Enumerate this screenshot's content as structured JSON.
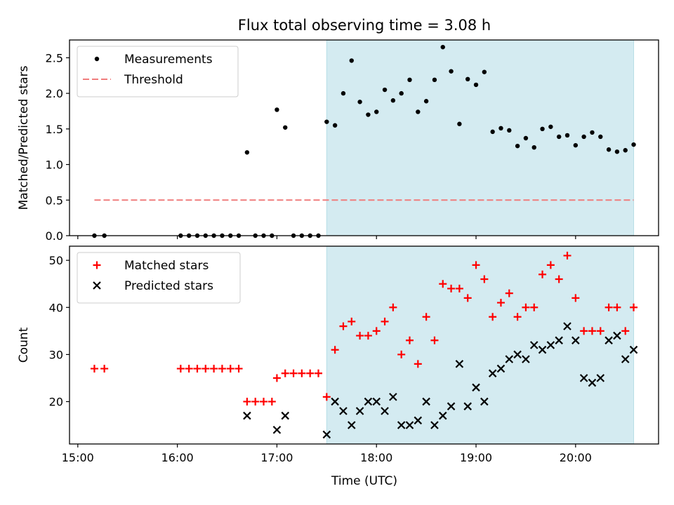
{
  "chart_data": [
    {
      "type": "scatter",
      "title": "Flux total observing time = 3.08 h",
      "xlabel": "",
      "ylabel": "Matched/Predicted stars",
      "x_tick_labels": [
        "15:00",
        "16:00",
        "17:00",
        "18:00",
        "19:00",
        "20:00"
      ],
      "y_ticks": [
        0.0,
        0.5,
        1.0,
        1.5,
        2.0,
        2.5
      ],
      "y_tick_labels": [
        "0.0",
        "0.5",
        "1.0",
        "1.5",
        "2.0",
        "2.5"
      ],
      "ylim": [
        0.0,
        2.75
      ],
      "xlim": [
        "14:55",
        "20:50"
      ],
      "grid": false,
      "legend": "upper-left",
      "highlight_span": {
        "start": "17:30",
        "end": "20:35",
        "color": "#d4ebf1"
      },
      "series": [
        {
          "name": "Measurements",
          "color": "#000000",
          "marker": "dot",
          "points": [
            [
              "15:10",
              0
            ],
            [
              "15:16",
              0
            ],
            [
              "16:02",
              0
            ],
            [
              "16:07",
              0
            ],
            [
              "16:12",
              0
            ],
            [
              "16:17",
              0
            ],
            [
              "16:22",
              0
            ],
            [
              "16:27",
              0
            ],
            [
              "16:32",
              0
            ],
            [
              "16:37",
              0
            ],
            [
              "16:42",
              1.17
            ],
            [
              "16:47",
              0
            ],
            [
              "16:52",
              0
            ],
            [
              "16:57",
              0
            ],
            [
              "17:00",
              1.77
            ],
            [
              "17:05",
              1.52
            ],
            [
              "17:10",
              0
            ],
            [
              "17:15",
              0
            ],
            [
              "17:20",
              0
            ],
            [
              "17:25",
              0
            ],
            [
              "17:30",
              1.6
            ],
            [
              "17:35",
              1.55
            ],
            [
              "17:40",
              2.0
            ],
            [
              "17:45",
              2.46
            ],
            [
              "17:50",
              1.88
            ],
            [
              "17:55",
              1.7
            ],
            [
              "18:00",
              1.74
            ],
            [
              "18:05",
              2.05
            ],
            [
              "18:10",
              1.9
            ],
            [
              "18:15",
              2.0
            ],
            [
              "18:20",
              2.19
            ],
            [
              "18:25",
              1.74
            ],
            [
              "18:30",
              1.89
            ],
            [
              "18:35",
              2.19
            ],
            [
              "18:40",
              2.65
            ],
            [
              "18:45",
              2.31
            ],
            [
              "18:50",
              1.57
            ],
            [
              "18:55",
              2.2
            ],
            [
              "19:00",
              2.12
            ],
            [
              "19:05",
              2.3
            ],
            [
              "19:10",
              1.46
            ],
            [
              "19:15",
              1.51
            ],
            [
              "19:20",
              1.48
            ],
            [
              "19:25",
              1.26
            ],
            [
              "19:30",
              1.37
            ],
            [
              "19:35",
              1.24
            ],
            [
              "19:40",
              1.5
            ],
            [
              "19:45",
              1.53
            ],
            [
              "19:50",
              1.39
            ],
            [
              "19:55",
              1.41
            ],
            [
              "20:00",
              1.27
            ],
            [
              "20:05",
              1.39
            ],
            [
              "20:10",
              1.45
            ],
            [
              "20:15",
              1.39
            ],
            [
              "20:20",
              1.21
            ],
            [
              "20:25",
              1.18
            ],
            [
              "20:30",
              1.2
            ],
            [
              "20:35",
              1.28
            ]
          ]
        },
        {
          "name": "Threshold",
          "color": "#f07d7d",
          "style": "dashed",
          "points": [
            [
              "15:10",
              0.5
            ],
            [
              "20:35",
              0.5
            ]
          ]
        }
      ]
    },
    {
      "type": "scatter",
      "xlabel": "Time (UTC)",
      "ylabel": "Count",
      "x_tick_labels": [
        "15:00",
        "16:00",
        "17:00",
        "18:00",
        "19:00",
        "20:00"
      ],
      "y_ticks": [
        20,
        30,
        40,
        50
      ],
      "y_tick_labels": [
        "20",
        "30",
        "40",
        "50"
      ],
      "ylim": [
        11,
        53
      ],
      "xlim": [
        "14:55",
        "20:50"
      ],
      "grid": false,
      "legend": "upper-left",
      "highlight_span": {
        "start": "17:30",
        "end": "20:35",
        "color": "#d4ebf1"
      },
      "series": [
        {
          "name": "Matched stars",
          "color": "#ff0000",
          "marker": "plus",
          "points": [
            [
              "15:10",
              27
            ],
            [
              "15:16",
              27
            ],
            [
              "16:02",
              27
            ],
            [
              "16:07",
              27
            ],
            [
              "16:12",
              27
            ],
            [
              "16:17",
              27
            ],
            [
              "16:22",
              27
            ],
            [
              "16:27",
              27
            ],
            [
              "16:32",
              27
            ],
            [
              "16:37",
              27
            ],
            [
              "16:42",
              20
            ],
            [
              "16:47",
              20
            ],
            [
              "16:52",
              20
            ],
            [
              "16:57",
              20
            ],
            [
              "17:00",
              25
            ],
            [
              "17:05",
              26
            ],
            [
              "17:10",
              26
            ],
            [
              "17:15",
              26
            ],
            [
              "17:20",
              26
            ],
            [
              "17:25",
              26
            ],
            [
              "17:30",
              21
            ],
            [
              "17:35",
              31
            ],
            [
              "17:40",
              36
            ],
            [
              "17:45",
              37
            ],
            [
              "17:50",
              34
            ],
            [
              "17:55",
              34
            ],
            [
              "18:00",
              35
            ],
            [
              "18:05",
              37
            ],
            [
              "18:10",
              40
            ],
            [
              "18:15",
              30
            ],
            [
              "18:20",
              33
            ],
            [
              "18:25",
              28
            ],
            [
              "18:30",
              38
            ],
            [
              "18:35",
              33
            ],
            [
              "18:40",
              45
            ],
            [
              "18:45",
              44
            ],
            [
              "18:50",
              44
            ],
            [
              "18:55",
              42
            ],
            [
              "19:00",
              49
            ],
            [
              "19:05",
              46
            ],
            [
              "19:10",
              38
            ],
            [
              "19:15",
              41
            ],
            [
              "19:20",
              43
            ],
            [
              "19:25",
              38
            ],
            [
              "19:30",
              40
            ],
            [
              "19:35",
              40
            ],
            [
              "19:40",
              47
            ],
            [
              "19:45",
              49
            ],
            [
              "19:50",
              46
            ],
            [
              "19:55",
              51
            ],
            [
              "20:00",
              42
            ],
            [
              "20:05",
              35
            ],
            [
              "20:10",
              35
            ],
            [
              "20:15",
              35
            ],
            [
              "20:20",
              40
            ],
            [
              "20:25",
              40
            ],
            [
              "20:30",
              35
            ],
            [
              "20:35",
              40
            ]
          ]
        },
        {
          "name": "Predicted stars",
          "color": "#000000",
          "marker": "x",
          "points": [
            [
              "16:42",
              17
            ],
            [
              "17:00",
              14
            ],
            [
              "17:05",
              17
            ],
            [
              "17:30",
              13
            ],
            [
              "17:35",
              20
            ],
            [
              "17:40",
              18
            ],
            [
              "17:45",
              15
            ],
            [
              "17:50",
              18
            ],
            [
              "17:55",
              20
            ],
            [
              "18:00",
              20
            ],
            [
              "18:05",
              18
            ],
            [
              "18:10",
              21
            ],
            [
              "18:15",
              15
            ],
            [
              "18:20",
              15
            ],
            [
              "18:25",
              16
            ],
            [
              "18:30",
              20
            ],
            [
              "18:35",
              15
            ],
            [
              "18:40",
              17
            ],
            [
              "18:45",
              19
            ],
            [
              "18:50",
              28
            ],
            [
              "18:55",
              19
            ],
            [
              "19:00",
              23
            ],
            [
              "19:05",
              20
            ],
            [
              "19:10",
              26
            ],
            [
              "19:15",
              27
            ],
            [
              "19:20",
              29
            ],
            [
              "19:25",
              30
            ],
            [
              "19:30",
              29
            ],
            [
              "19:35",
              32
            ],
            [
              "19:40",
              31
            ],
            [
              "19:45",
              32
            ],
            [
              "19:50",
              33
            ],
            [
              "19:55",
              36
            ],
            [
              "20:00",
              33
            ],
            [
              "20:05",
              25
            ],
            [
              "20:10",
              24
            ],
            [
              "20:15",
              25
            ],
            [
              "20:20",
              33
            ],
            [
              "20:25",
              34
            ],
            [
              "20:30",
              29
            ],
            [
              "20:35",
              31
            ]
          ]
        }
      ]
    }
  ]
}
